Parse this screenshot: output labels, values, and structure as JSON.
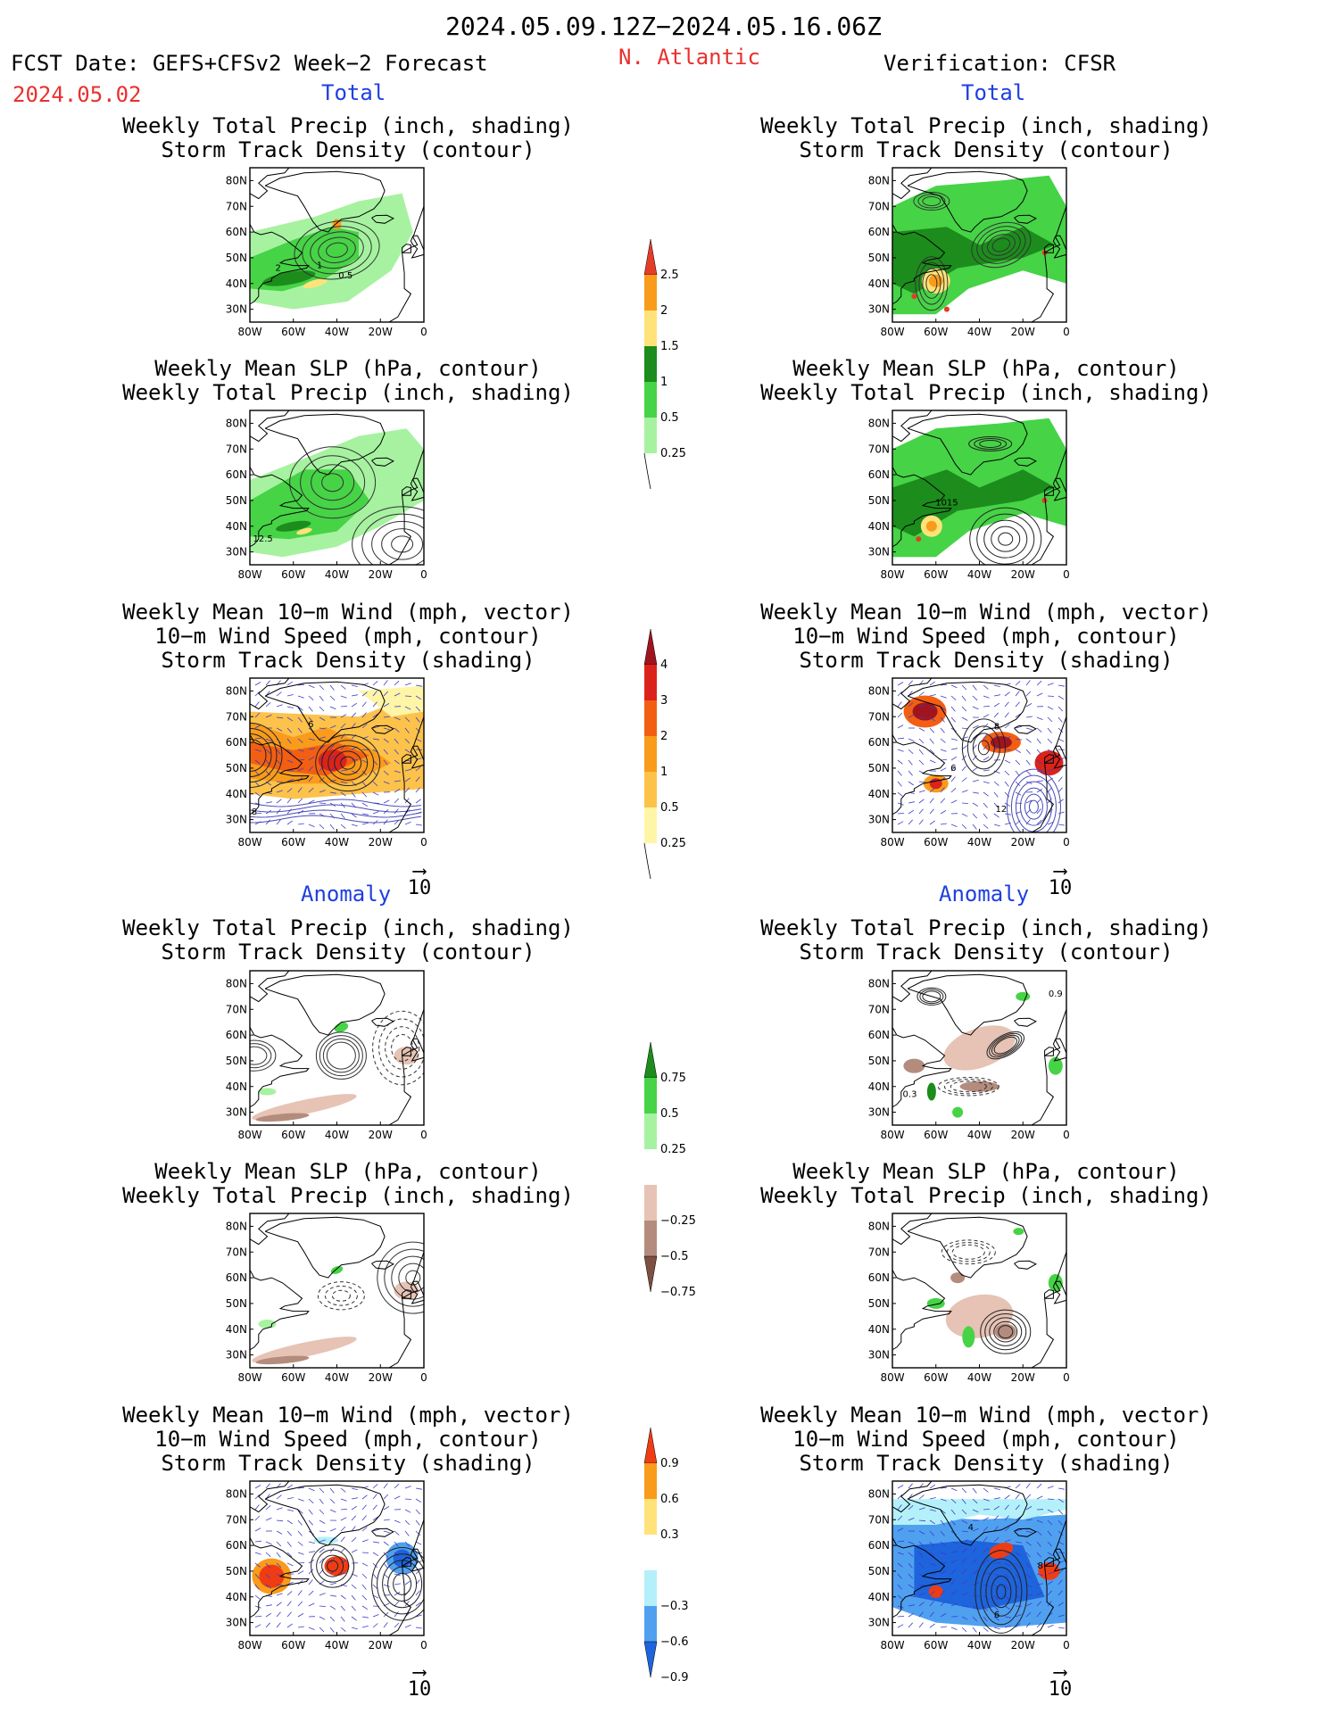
{
  "header": {
    "period": "2024.05.09.12Z−2024.05.16.06Z",
    "fcst_label": "FCST Date: GEFS+CFSv2 Week−2 Forecast",
    "fcst_date": "2024.05.02",
    "region": "N. Atlantic",
    "verification": "Verification: CFSR"
  },
  "section_labels": {
    "total": "Total",
    "anomaly": "Anomaly"
  },
  "axes": {
    "lat_labels": [
      "80N",
      "70N",
      "60N",
      "50N",
      "40N",
      "30N"
    ],
    "lon_labels": [
      "80W",
      "60W",
      "40W",
      "20W",
      "0"
    ]
  },
  "titles": {
    "precip_track": [
      "Weekly Total Precip (inch, shading)",
      "Storm Track Density (contour)"
    ],
    "slp_precip": [
      "Weekly Mean SLP (hPa, contour)",
      "Weekly Total Precip (inch, shading)"
    ],
    "wind_track": [
      "Weekly Mean 10−m Wind (mph, vector)",
      "10−m Wind Speed (mph, contour)",
      "Storm Track Density (shading)"
    ]
  },
  "vector_scale": "10",
  "colorbars": {
    "precip_total": {
      "labels": [
        "2.5",
        "2",
        "1.5",
        "1",
        "0.5",
        "0.25"
      ],
      "colors": [
        "#e53c28",
        "#f99b1b",
        "#ffe27a",
        "#1c8c1c",
        "#46d346",
        "#a6f2a0"
      ]
    },
    "track_total": {
      "labels": [
        "4",
        "3",
        "2",
        "1",
        "0.5",
        "0.25"
      ],
      "colors": [
        "#a0141e",
        "#dc2319",
        "#f25f13",
        "#f99b1b",
        "#fcc24a",
        "#fff5a6"
      ]
    },
    "precip_anom": {
      "labels": [
        "0.75",
        "0.5",
        "0.25",
        "−0.25",
        "−0.5",
        "−0.75"
      ],
      "colors": [
        "#1c8c1c",
        "#46d346",
        "#a6f2a0",
        "#ffffff",
        "#e6c3b4",
        "#b48c7d",
        "#7d5041"
      ]
    },
    "track_anom": {
      "labels": [
        "0.9",
        "0.6",
        "0.3",
        "−0.3",
        "−0.6",
        "−0.9"
      ],
      "colors": [
        "#f03c14",
        "#f99b1b",
        "#ffe27a",
        "#ffffff",
        "#b4f0fa",
        "#50a0f0",
        "#1e64dc"
      ]
    }
  },
  "contour_labels": {
    "p1": [
      "2",
      "1",
      "0.5"
    ],
    "p2": [
      "12.5"
    ],
    "p3": [
      "6",
      "8"
    ],
    "p4": [
      "1015"
    ],
    "p5": [
      "8",
      "6",
      "12"
    ],
    "p6": [
      "0.9",
      "0.3"
    ],
    "p7": [
      "4",
      "8",
      "6"
    ]
  }
}
